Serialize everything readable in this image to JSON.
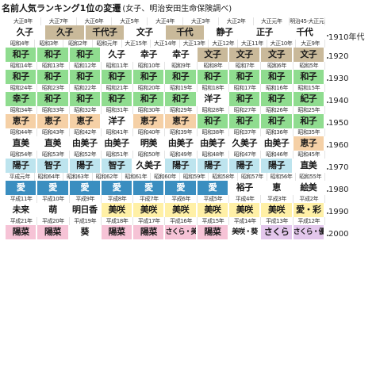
{
  "title": "名前人気ランキング1位の変遷",
  "subtitle": "(女子、明治安田生命保険調べ)",
  "decades": [
    "1910年代",
    "1920",
    "1930",
    "1940",
    "1950",
    "1960",
    "1970",
    "1980",
    "1990",
    "2000"
  ],
  "colors": {
    "tan": "#c9b99a",
    "green": "#8fdc8f",
    "peach": "#f5d0a6",
    "lightblue": "#bde4ee",
    "blue": "#3a8ec0",
    "yellow": "#fff0a6",
    "pink": "#f6c3d6",
    "lilac": "#e3c7ec",
    "gray": "#dcdcdc",
    "white": "#ffffff"
  },
  "rows": [
    {
      "years": [
        "大正8年",
        "大正7年",
        "大正6年",
        "大正5年",
        "大正4年",
        "大正3年",
        "大正2年",
        "大正元年",
        "明治45-大正元年"
      ],
      "names": [
        {
          "t": "久子",
          "c": "white"
        },
        {
          "t": "久子",
          "c": "tan"
        },
        {
          "t": "千代子",
          "c": "tan"
        },
        {
          "t": "文子",
          "c": "white"
        },
        {
          "t": "千代",
          "c": "tan"
        },
        {
          "t": "静子",
          "c": "white"
        },
        {
          "t": "正子",
          "c": "white"
        },
        {
          "t": "千代",
          "c": "white"
        }
      ]
    },
    {
      "years": [
        "昭和4年",
        "昭和3年",
        "昭和2年",
        "昭和元年",
        "大正15年",
        "大正14年",
        "大正13年",
        "大正12年",
        "大正11年",
        "大正10年",
        "大正9年"
      ],
      "names": [
        {
          "t": "和子",
          "c": "green"
        },
        {
          "t": "和子",
          "c": "green"
        },
        {
          "t": "和子",
          "c": "green"
        },
        {
          "t": "久子",
          "c": "white"
        },
        {
          "t": "幸子",
          "c": "white"
        },
        {
          "t": "幸子",
          "c": "white"
        },
        {
          "t": "文子",
          "c": "tan"
        },
        {
          "t": "文子",
          "c": "tan"
        },
        {
          "t": "文子",
          "c": "tan"
        },
        {
          "t": "文子",
          "c": "tan"
        }
      ]
    },
    {
      "years": [
        "昭和14年",
        "昭和13年",
        "昭和12年",
        "昭和11年",
        "昭和10年",
        "昭和9年",
        "昭和8年",
        "昭和7年",
        "昭和6年",
        "昭和5年"
      ],
      "names": [
        {
          "t": "和子",
          "c": "green"
        },
        {
          "t": "和子",
          "c": "green"
        },
        {
          "t": "和子",
          "c": "green"
        },
        {
          "t": "和子",
          "c": "green"
        },
        {
          "t": "和子",
          "c": "green"
        },
        {
          "t": "和子",
          "c": "green"
        },
        {
          "t": "和子",
          "c": "green"
        },
        {
          "t": "和子",
          "c": "green"
        },
        {
          "t": "和子",
          "c": "green"
        },
        {
          "t": "和子",
          "c": "green"
        }
      ]
    },
    {
      "years": [
        "昭和24年",
        "昭和23年",
        "昭和22年",
        "昭和21年",
        "昭和20年",
        "昭和19年",
        "昭和18年",
        "昭和17年",
        "昭和16年",
        "昭和15年"
      ],
      "names": [
        {
          "t": "幸子",
          "c": "green"
        },
        {
          "t": "和子",
          "c": "green"
        },
        {
          "t": "和子",
          "c": "green"
        },
        {
          "t": "和子",
          "c": "green"
        },
        {
          "t": "和子",
          "c": "green"
        },
        {
          "t": "和子",
          "c": "green"
        },
        {
          "t": "洋子",
          "c": "white"
        },
        {
          "t": "和子",
          "c": "green"
        },
        {
          "t": "和子",
          "c": "green"
        },
        {
          "t": "紀子",
          "c": "green"
        }
      ]
    },
    {
      "years": [
        "昭和34年",
        "昭和33年",
        "昭和32年",
        "昭和31年",
        "昭和30年",
        "昭和29年",
        "昭和28年",
        "昭和27年",
        "昭和26年",
        "昭和25年"
      ],
      "names": [
        {
          "t": "恵子",
          "c": "peach"
        },
        {
          "t": "恵子",
          "c": "peach"
        },
        {
          "t": "恵子",
          "c": "peach"
        },
        {
          "t": "洋子",
          "c": "white"
        },
        {
          "t": "恵子",
          "c": "peach"
        },
        {
          "t": "恵子",
          "c": "peach"
        },
        {
          "t": "和子",
          "c": "green"
        },
        {
          "t": "和子",
          "c": "green"
        },
        {
          "t": "和子",
          "c": "green"
        },
        {
          "t": "和子",
          "c": "green"
        }
      ]
    },
    {
      "years": [
        "昭和44年",
        "昭和43年",
        "昭和42年",
        "昭和41年",
        "昭和40年",
        "昭和39年",
        "昭和38年",
        "昭和37年",
        "昭和36年",
        "昭和35年"
      ],
      "names": [
        {
          "t": "直美",
          "c": "white"
        },
        {
          "t": "直美",
          "c": "white"
        },
        {
          "t": "由美子",
          "c": "white"
        },
        {
          "t": "由美子",
          "c": "white"
        },
        {
          "t": "明美",
          "c": "white"
        },
        {
          "t": "由美子",
          "c": "white"
        },
        {
          "t": "由美子",
          "c": "white"
        },
        {
          "t": "久美子",
          "c": "white"
        },
        {
          "t": "由美子",
          "c": "white"
        },
        {
          "t": "恵子",
          "c": "peach"
        }
      ]
    },
    {
      "years": [
        "昭和54年",
        "昭和53年",
        "昭和52年",
        "昭和51年",
        "昭和50年",
        "昭和49年",
        "昭和48年",
        "昭和47年",
        "昭和46年",
        "昭和45年"
      ],
      "names": [
        {
          "t": "陽子",
          "c": "lightblue"
        },
        {
          "t": "智子",
          "c": "lightblue"
        },
        {
          "t": "陽子",
          "c": "lightblue"
        },
        {
          "t": "智子",
          "c": "lightblue"
        },
        {
          "t": "久美子",
          "c": "white"
        },
        {
          "t": "陽子",
          "c": "lightblue"
        },
        {
          "t": "陽子",
          "c": "lightblue"
        },
        {
          "t": "陽子",
          "c": "lightblue"
        },
        {
          "t": "陽子",
          "c": "lightblue"
        },
        {
          "t": "直美",
          "c": "white"
        }
      ]
    },
    {
      "years": [
        "平成元年",
        "昭和64年",
        "昭和63年",
        "昭和62年",
        "昭和61年",
        "昭和60年",
        "昭和59年",
        "昭和58年",
        "昭和57年",
        "昭和56年",
        "昭和55年"
      ],
      "names": [
        {
          "t": "愛",
          "c": "blue"
        },
        {
          "t": "愛",
          "c": "blue"
        },
        {
          "t": "愛",
          "c": "blue"
        },
        {
          "t": "愛",
          "c": "blue"
        },
        {
          "t": "愛",
          "c": "blue"
        },
        {
          "t": "愛",
          "c": "blue"
        },
        {
          "t": "愛",
          "c": "blue"
        },
        {
          "t": "裕子",
          "c": "white"
        },
        {
          "t": "恵",
          "c": "white"
        },
        {
          "t": "絵美",
          "c": "white"
        }
      ]
    },
    {
      "years": [
        "平成11年",
        "平成10年",
        "平成9年",
        "平成8年",
        "平成7年",
        "平成6年",
        "平成5年",
        "平成4年",
        "平成3年",
        "平成2年"
      ],
      "names": [
        {
          "t": "未来",
          "c": "white"
        },
        {
          "t": "萌",
          "c": "white"
        },
        {
          "t": "明日香",
          "c": "white"
        },
        {
          "t": "美咲",
          "c": "yellow"
        },
        {
          "t": "美咲",
          "c": "yellow"
        },
        {
          "t": "美咲",
          "c": "yellow"
        },
        {
          "t": "美咲",
          "c": "yellow"
        },
        {
          "t": "美咲",
          "c": "yellow"
        },
        {
          "t": "美咲",
          "c": "yellow"
        },
        {
          "t": "愛・彩",
          "c": "yellow"
        }
      ]
    },
    {
      "years": [
        "平成21年",
        "平成20年",
        "平成19年",
        "平成18年",
        "平成17年",
        "平成16年",
        "平成15年",
        "平成14年",
        "平成13年",
        "平成12年"
      ],
      "names": [
        {
          "t": "陽菜",
          "c": "pink"
        },
        {
          "t": "陽菜",
          "c": "pink"
        },
        {
          "t": "葵",
          "c": "white"
        },
        {
          "t": "陽菜",
          "c": "pink"
        },
        {
          "t": "陽菜",
          "c": "pink"
        },
        {
          "t": "さくら・美咲",
          "c": "pink"
        },
        {
          "t": "陽菜",
          "c": "pink"
        },
        {
          "t": "美咲・葵",
          "c": "white"
        },
        {
          "t": "さくら",
          "c": "lilac"
        },
        {
          "t": "さくら・優花",
          "c": "lilac"
        }
      ]
    }
  ]
}
